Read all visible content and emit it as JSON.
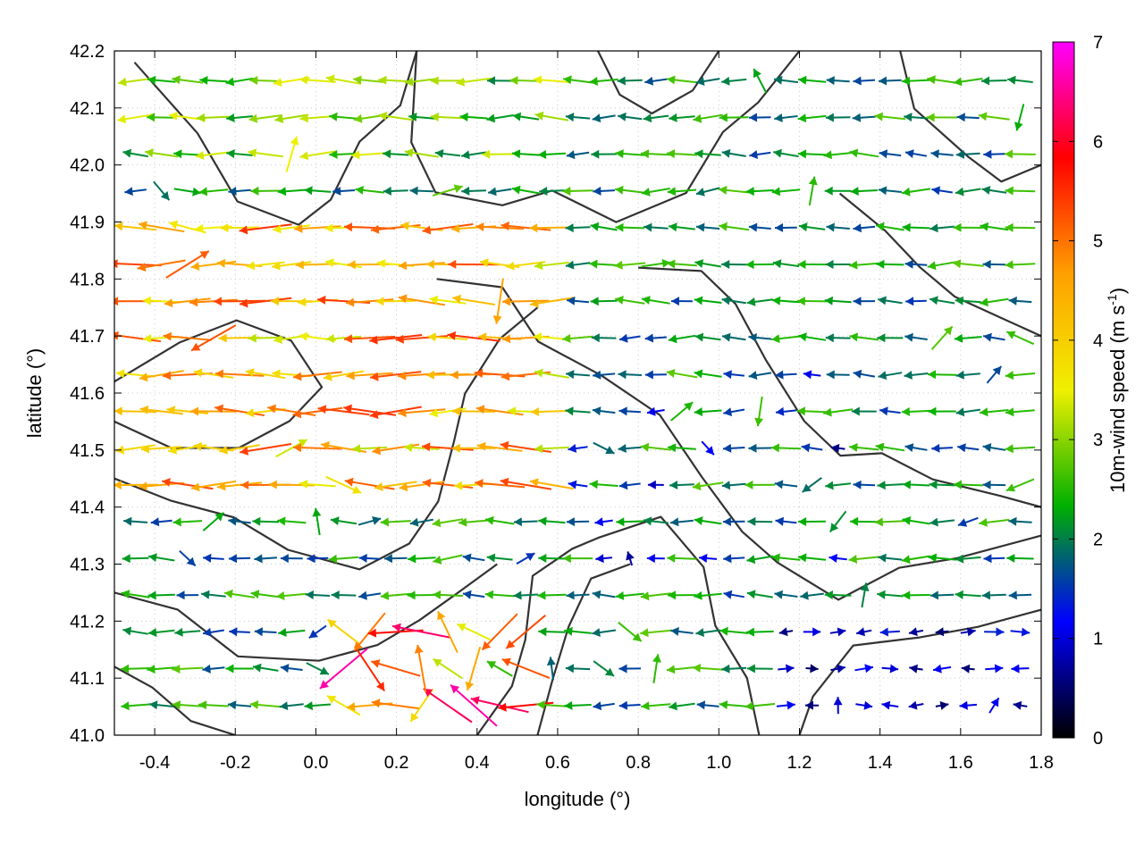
{
  "chart_data": {
    "type": "vector-field",
    "xlabel": "longitude (°)",
    "ylabel": "latitude (°)",
    "xlim": [
      -0.5,
      1.8
    ],
    "ylim": [
      41.0,
      42.2
    ],
    "x_ticks": [
      -0.4,
      -0.2,
      0.0,
      0.2,
      0.4,
      0.6,
      0.8,
      1.0,
      1.2,
      1.4,
      1.6,
      1.8
    ],
    "x_tick_labels": [
      "-0.4",
      "-0.2",
      "0.0",
      "0.2",
      "0.4",
      "0.6",
      "0.8",
      "1.0",
      "1.2",
      "1.4",
      "1.6",
      "1.8"
    ],
    "y_ticks": [
      41.0,
      41.1,
      41.2,
      41.3,
      41.4,
      41.5,
      41.6,
      41.7,
      41.8,
      41.9,
      42.0,
      42.1,
      42.2
    ],
    "y_tick_labels": [
      "41.0",
      "41.1",
      "41.2",
      "41.3",
      "41.4",
      "41.5",
      "41.6",
      "41.7",
      "41.8",
      "41.9",
      "42.0",
      "42.1",
      "42.2"
    ],
    "grid": true,
    "colorbar": {
      "label_main": "10m-wind speed (m s",
      "label_sup": "-1",
      "label_end": ")",
      "range": [
        0,
        7
      ],
      "ticks": [
        0,
        1,
        2,
        3,
        4,
        5,
        6,
        7
      ],
      "tick_labels": [
        "0",
        "1",
        "2",
        "3",
        "4",
        "5",
        "6",
        "7"
      ],
      "colors": [
        "#000000",
        "#0000ff",
        "#00b000",
        "#f0f000",
        "#ffa000",
        "#ff0000",
        "#ff00ff"
      ]
    },
    "wind_vectors": "approximately 35 x 18 grid of wind arrows; predominantly westward (easterly) flow of 1-3 m/s; stronger 4-6 m/s westward flow across longitude -0.5 to 0.6 between latitude 41.4 and 41.9; weak 0-1.5 m/s winds over the sea in the lower right; mixed directions with 6-7 m/s southwestward gusts near longitude 0.1 to 0.5, latitude 41.0 to 41.2",
    "contours": "orography contour lines drawn in dark grey"
  }
}
